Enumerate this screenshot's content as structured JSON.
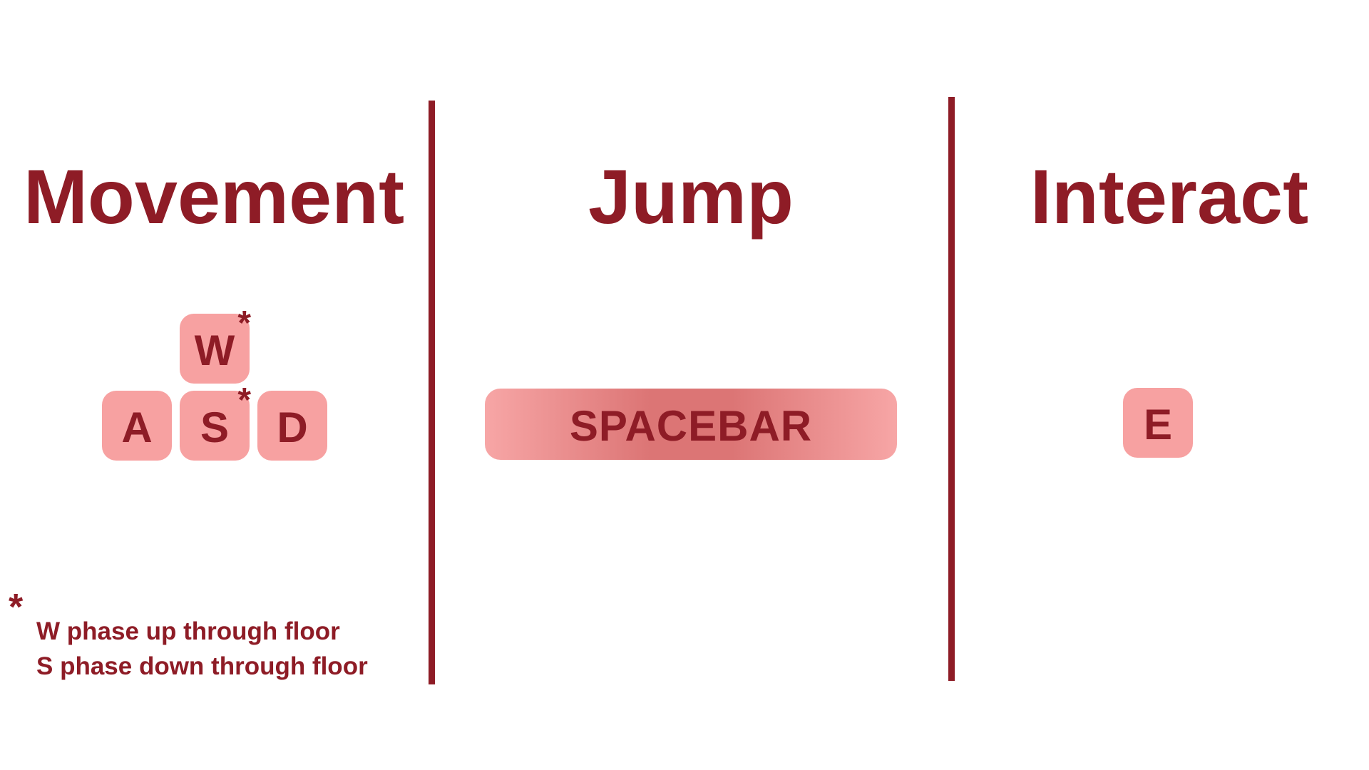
{
  "columns": {
    "movement": {
      "title": "Movement"
    },
    "jump": {
      "title": "Jump"
    },
    "interact": {
      "title": "Interact"
    }
  },
  "keys": {
    "w": {
      "label": "W",
      "mark": "*"
    },
    "a": {
      "label": "A"
    },
    "s": {
      "label": "S",
      "mark": "*"
    },
    "d": {
      "label": "D"
    },
    "spacebar": {
      "label": "SPACEBAR"
    },
    "e": {
      "label": "E"
    }
  },
  "footnote": {
    "mark": "*",
    "lines": [
      "W phase up through floor",
      "S phase down through floor"
    ]
  },
  "colors": {
    "text": "#8e1c26",
    "key_fill": "#f7a1a1",
    "spacebar_edge": "#f7a6a6",
    "spacebar_center": "#dc7575",
    "divider": "#8e1c26",
    "background": "#ffffff"
  }
}
